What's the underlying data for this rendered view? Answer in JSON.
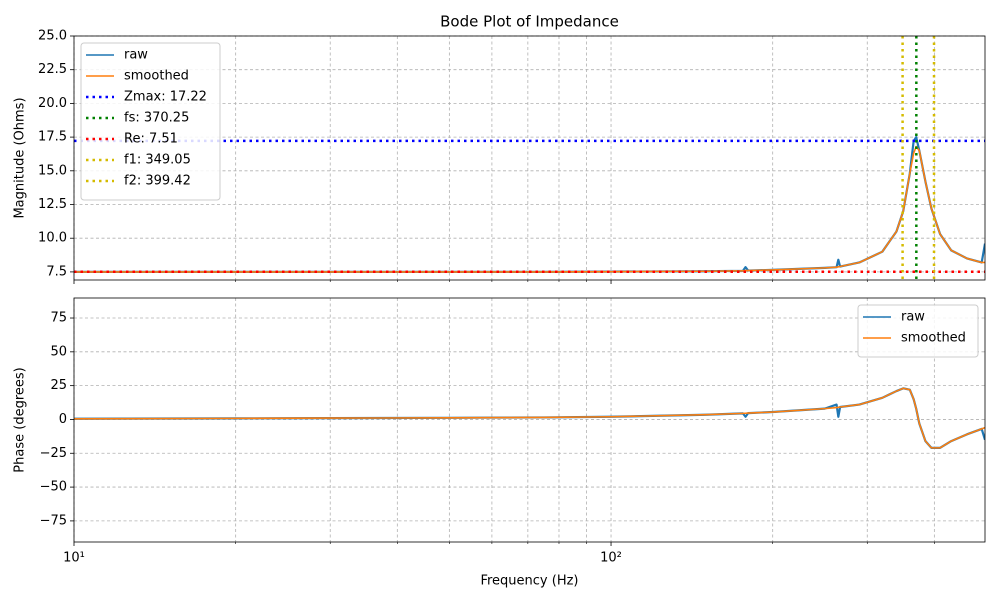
{
  "chart_data": [
    {
      "type": "line",
      "title": "Bode Plot of Impedance",
      "ylabel": "Magnitude (Ohms)",
      "xscale": "log",
      "xlim": [
        10,
        497
      ],
      "ylim": [
        6.9,
        25
      ],
      "grid": true,
      "show_xtick_labels": false,
      "xticks": [
        {
          "value": 10,
          "label": "10¹"
        },
        {
          "value": 100,
          "label": "10²"
        }
      ],
      "xminorticks": [
        20,
        30,
        40,
        50,
        60,
        70,
        80,
        90,
        200,
        300,
        400
      ],
      "yticks": [
        7.5,
        {
          "value": 10,
          "label": "10.0"
        },
        12.5,
        {
          "value": 15,
          "label": "15.0"
        },
        17.5,
        {
          "value": 20,
          "label": "20.0"
        },
        22.5,
        {
          "value": 25,
          "label": "25.0"
        }
      ],
      "legend": "upper left",
      "x": [
        10,
        20,
        30,
        50,
        75,
        100,
        150,
        176,
        178,
        180,
        200,
        250,
        263,
        265,
        267,
        290,
        320,
        340,
        350,
        360,
        366,
        370,
        375,
        385,
        395,
        410,
        430,
        460,
        490,
        497
      ],
      "series": [
        {
          "name": "raw",
          "color": "#1f77b4",
          "values": [
            7.5,
            7.5,
            7.5,
            7.5,
            7.5,
            7.52,
            7.55,
            7.58,
            7.85,
            7.6,
            7.65,
            7.8,
            7.85,
            8.4,
            7.9,
            8.2,
            9.0,
            10.5,
            12.0,
            14.8,
            17.2,
            17.5,
            16.5,
            14.2,
            12.2,
            10.3,
            9.1,
            8.5,
            8.2,
            9.6
          ]
        },
        {
          "name": "smoothed",
          "color": "#ff7f0e",
          "values": [
            7.5,
            7.5,
            7.5,
            7.5,
            7.5,
            7.52,
            7.55,
            7.58,
            7.6,
            7.6,
            7.65,
            7.8,
            7.85,
            7.88,
            7.9,
            8.2,
            9.0,
            10.5,
            12.0,
            14.8,
            16.3,
            16.8,
            16.5,
            14.2,
            12.2,
            10.3,
            9.1,
            8.5,
            8.2,
            8.2
          ]
        }
      ],
      "reference_lines": [
        {
          "name": "Zmax: 17.22",
          "orientation": "horizontal",
          "value": 17.22,
          "color": "#0000ff"
        },
        {
          "name": "fs: 370.25",
          "orientation": "vertical",
          "value": 370.25,
          "color": "#008000"
        },
        {
          "name": "Re: 7.51",
          "orientation": "horizontal",
          "value": 7.51,
          "color": "#ff0000"
        },
        {
          "name": "f1: 349.05",
          "orientation": "vertical",
          "value": 349.05,
          "color": "#d4bb00"
        },
        {
          "name": "f2: 399.42",
          "orientation": "vertical",
          "value": 399.42,
          "color": "#d4bb00"
        }
      ]
    },
    {
      "type": "line",
      "ylabel": "Phase (degrees)",
      "xlabel": "Frequency (Hz)",
      "xscale": "log",
      "xlim": [
        10,
        497
      ],
      "ylim": [
        -90.6,
        89.8
      ],
      "grid": true,
      "show_xtick_labels": true,
      "xticks": [
        {
          "value": 10,
          "label": "10¹"
        },
        {
          "value": 100,
          "label": "10²"
        }
      ],
      "xminorticks": [
        20,
        30,
        40,
        50,
        60,
        70,
        80,
        90,
        200,
        300,
        400
      ],
      "yticks": [
        {
          "value": -75,
          "label": "−75"
        },
        {
          "value": -50,
          "label": "−50"
        },
        {
          "value": -25,
          "label": "−25"
        },
        0,
        25,
        50,
        75
      ],
      "legend": "upper right",
      "x": [
        10,
        20,
        30,
        50,
        75,
        100,
        150,
        176,
        178,
        180,
        200,
        250,
        263,
        265,
        267,
        290,
        320,
        340,
        350,
        360,
        366,
        370,
        375,
        385,
        395,
        410,
        430,
        460,
        490,
        497
      ],
      "series": [
        {
          "name": "raw",
          "color": "#1f77b4",
          "values": [
            0.5,
            0.8,
            1,
            1.2,
            1.5,
            2,
            3.5,
            4.5,
            2,
            4.7,
            5.5,
            8,
            11,
            2,
            9.2,
            11,
            16,
            21,
            23,
            22,
            15,
            8,
            -3,
            -16,
            -21,
            -21,
            -16,
            -11,
            -7,
            -15
          ]
        },
        {
          "name": "smoothed",
          "color": "#ff7f0e",
          "values": [
            0.5,
            0.8,
            1,
            1.2,
            1.5,
            2,
            3.5,
            4.5,
            4.6,
            4.7,
            5.5,
            8,
            8.8,
            9,
            9.2,
            11,
            16,
            21,
            23,
            22,
            15,
            8,
            -3,
            -16,
            -21,
            -21,
            -16,
            -11,
            -7,
            -6
          ]
        }
      ]
    }
  ]
}
